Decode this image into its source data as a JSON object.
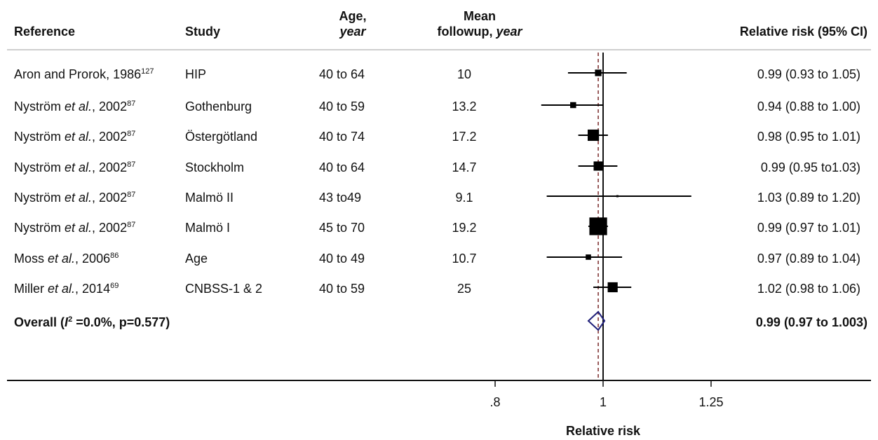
{
  "headers": {
    "reference": "Reference",
    "study": "Study",
    "age_line1": "Age,",
    "age_line2": "year",
    "followup_line1": "Mean",
    "followup_line2a": "followup,",
    "followup_line2b": "year",
    "rr": "Relative risk (95% CI)"
  },
  "chart_data": {
    "type": "forest",
    "xlabel": "Relative risk",
    "scale": "log",
    "xlim": [
      0.8,
      1.25
    ],
    "ticks": [
      {
        "value": 0.8,
        "label": ".8"
      },
      {
        "value": 1,
        "label": "1"
      },
      {
        "value": 1.25,
        "label": "1.25"
      }
    ],
    "null_line": 1,
    "pooled_line": 0.99,
    "rows": [
      {
        "ref_pre": "Aron and Prorok, 1986",
        "ref_italic": "",
        "ref_post": "",
        "sup": "127",
        "study": "HIP",
        "age": "40 to 64",
        "followup": "10",
        "rr": 0.99,
        "lo": 0.93,
        "hi": 1.05,
        "weight": 0.3,
        "ci_text": "0.99 (0.93 to 1.05)"
      },
      {
        "ref_pre": "Nyström ",
        "ref_italic": "et al.",
        "ref_post": ", 2002",
        "sup": "87",
        "study": "Gothenburg",
        "age": "40 to 59",
        "followup": "13.2",
        "rr": 0.94,
        "lo": 0.88,
        "hi": 1.0,
        "weight": 0.25,
        "ci_text": "0.94 (0.88 to 1.00)"
      },
      {
        "ref_pre": "Nyström ",
        "ref_italic": "et al.",
        "ref_post": ", 2002",
        "sup": "87",
        "study": "Östergötland",
        "age": "40 to 74",
        "followup": "17.2",
        "rr": 0.98,
        "lo": 0.95,
        "hi": 1.01,
        "weight": 0.9,
        "ci_text": "0.98 (0.95 to 1.01)"
      },
      {
        "ref_pre": "Nyström ",
        "ref_italic": "et al.",
        "ref_post": ", 2002",
        "sup": "87",
        "study": "Stockholm",
        "age": "40 to 64",
        "followup": "14.7",
        "rr": 0.99,
        "lo": 0.95,
        "hi": 1.03,
        "weight": 0.6,
        "ci_text": "0.99 (0.95 to1.03)"
      },
      {
        "ref_pre": "Nyström ",
        "ref_italic": "et al.",
        "ref_post": ", 2002",
        "sup": "87",
        "study": "Malmö II",
        "age": "43 to49",
        "followup": "9.1",
        "rr": 1.03,
        "lo": 0.89,
        "hi": 1.2,
        "weight": 0.02,
        "ci_text": "1.03 (0.89 to 1.20)"
      },
      {
        "ref_pre": "Nyström ",
        "ref_italic": "et al.",
        "ref_post": ", 2002",
        "sup": "87",
        "study": "Malmö I",
        "age": "45 to 70",
        "followup": "19.2",
        "rr": 0.99,
        "lo": 0.97,
        "hi": 1.01,
        "weight": 2.2,
        "ci_text": "0.99 (0.97 to 1.01)"
      },
      {
        "ref_pre": "Moss ",
        "ref_italic": "et al.",
        "ref_post": ", 2006",
        "sup": "86",
        "study": "Age",
        "age": "40 to 49",
        "followup": "10.7",
        "rr": 0.97,
        "lo": 0.89,
        "hi": 1.04,
        "weight": 0.2,
        "ci_text": "0.97 (0.89 to 1.04)"
      },
      {
        "ref_pre": "Miller ",
        "ref_italic": "et al.",
        "ref_post": ", 2014",
        "sup": "69",
        "study": "CNBSS-1 & 2",
        "age": "40 to 59",
        "followup": "25",
        "rr": 1.02,
        "lo": 0.98,
        "hi": 1.06,
        "weight": 0.7,
        "ci_text": "1.02 (0.98 to 1.06)"
      }
    ],
    "overall": {
      "label_pre": "Overall (",
      "label_i": "I",
      "label_sup": "2",
      "label_post": " =0.0%, p=0.577)",
      "rr": 0.99,
      "lo": 0.97,
      "hi": 1.003,
      "ci_text": "0.99 (0.97 to 1.003)"
    },
    "colors": {
      "marker": "#000000",
      "diamond": "#1f1f7a",
      "pooled_line": "#7a2a2a",
      "axis": "#111111",
      "separator": "#cfcfcf"
    }
  }
}
